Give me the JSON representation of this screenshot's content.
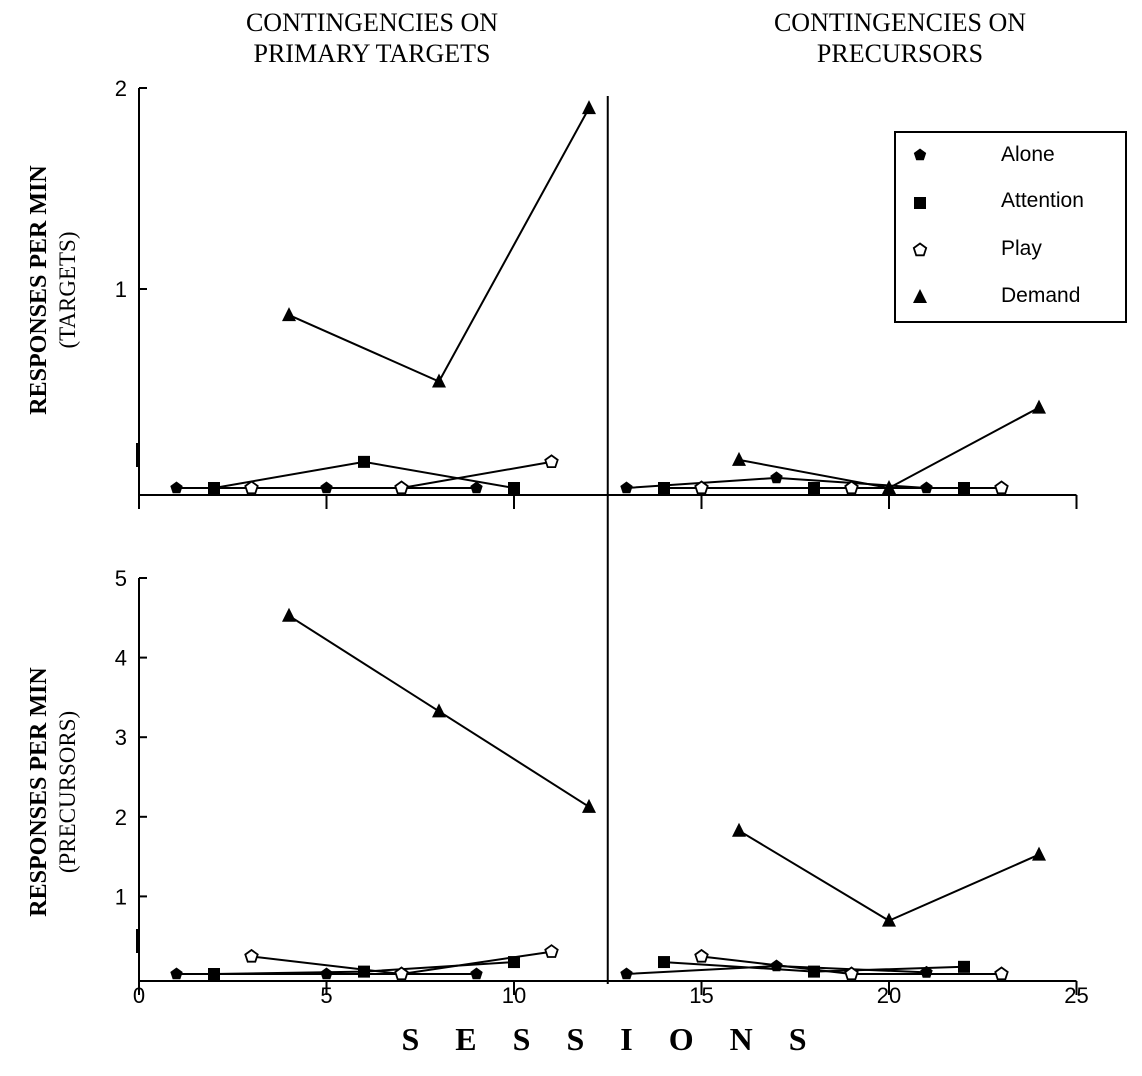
{
  "chart_data": {
    "type": "line",
    "column_titles": [
      [
        "CONTINGENCIES ON",
        "PRIMARY TARGETS"
      ],
      [
        "CONTINGENCIES ON",
        "PRECURSORS"
      ]
    ],
    "xlabel": "S E S S I O N S",
    "xlim": [
      0,
      25
    ],
    "xticks": [
      0,
      5,
      10,
      15,
      20,
      25
    ],
    "phase_change_x": 12.5,
    "legend": {
      "position": "top-right",
      "entries": [
        {
          "name": "Alone",
          "marker": "pentagon-filled"
        },
        {
          "name": "Attention",
          "marker": "square-filled"
        },
        {
          "name": "Play",
          "marker": "pentagon-open"
        },
        {
          "name": "Demand",
          "marker": "triangle-filled"
        }
      ]
    },
    "panels": [
      {
        "ylabel": "RESPONSES PER MIN",
        "ylabel_sub": "(TARGETS)",
        "ylim": [
          0,
          2
        ],
        "yticks": [
          1,
          2
        ],
        "series": [
          {
            "name": "Alone",
            "marker": "pentagon-filled",
            "segments": [
              [
                [
                  1,
                  0
                ],
                [
                  5,
                  0
                ],
                [
                  9,
                  0
                ]
              ],
              [
                [
                  13,
                  0
                ],
                [
                  17,
                  0.05
                ],
                [
                  21,
                  0
                ]
              ]
            ]
          },
          {
            "name": "Attention",
            "marker": "square-filled",
            "segments": [
              [
                [
                  2,
                  0
                ],
                [
                  6,
                  0.13
                ],
                [
                  10,
                  0
                ]
              ],
              [
                [
                  14,
                  0
                ],
                [
                  18,
                  0
                ],
                [
                  22,
                  0
                ]
              ]
            ]
          },
          {
            "name": "Play",
            "marker": "pentagon-open",
            "segments": [
              [
                [
                  3,
                  0
                ],
                [
                  7,
                  0
                ],
                [
                  11,
                  0.13
                ]
              ],
              [
                [
                  15,
                  0
                ],
                [
                  19,
                  0
                ],
                [
                  23,
                  0
                ]
              ]
            ]
          },
          {
            "name": "Demand",
            "marker": "triangle-filled",
            "segments": [
              [
                [
                  4,
                  0.86
                ],
                [
                  8,
                  0.53
                ],
                [
                  12,
                  1.89
                ]
              ],
              [
                [
                  16,
                  0.14
                ],
                [
                  20,
                  0
                ],
                [
                  24,
                  0.4
                ]
              ]
            ]
          }
        ]
      },
      {
        "ylabel": "RESPONSES PER MIN",
        "ylabel_sub": "(PRECURSORS)",
        "ylim": [
          0,
          5
        ],
        "yticks": [
          1,
          2,
          3,
          4,
          5
        ],
        "series": [
          {
            "name": "Alone",
            "marker": "pentagon-filled",
            "segments": [
              [
                [
                  1,
                  0
                ],
                [
                  5,
                  0
                ],
                [
                  9,
                  0
                ]
              ],
              [
                [
                  13,
                  0
                ],
                [
                  17,
                  0.1
                ],
                [
                  21,
                  0.02
                ]
              ]
            ]
          },
          {
            "name": "Attention",
            "marker": "square-filled",
            "segments": [
              [
                [
                  2,
                  0
                ],
                [
                  6,
                  0.03
                ],
                [
                  10,
                  0.15
                ]
              ],
              [
                [
                  14,
                  0.15
                ],
                [
                  18,
                  0.03
                ],
                [
                  22,
                  0.09
                ]
              ]
            ]
          },
          {
            "name": "Play",
            "marker": "pentagon-open",
            "segments": [
              [
                [
                  3,
                  0.22
                ],
                [
                  7,
                  0
                ],
                [
                  11,
                  0.28
                ]
              ],
              [
                [
                  15,
                  0.22
                ],
                [
                  19,
                  0
                ],
                [
                  23,
                  0
                ]
              ]
            ]
          },
          {
            "name": "Demand",
            "marker": "triangle-filled",
            "segments": [
              [
                [
                  4,
                  4.5
                ],
                [
                  8,
                  3.3
                ],
                [
                  12,
                  2.1
                ]
              ],
              [
                [
                  16,
                  1.8
                ],
                [
                  20,
                  0.67
                ],
                [
                  24,
                  1.5
                ]
              ]
            ]
          }
        ]
      }
    ]
  }
}
